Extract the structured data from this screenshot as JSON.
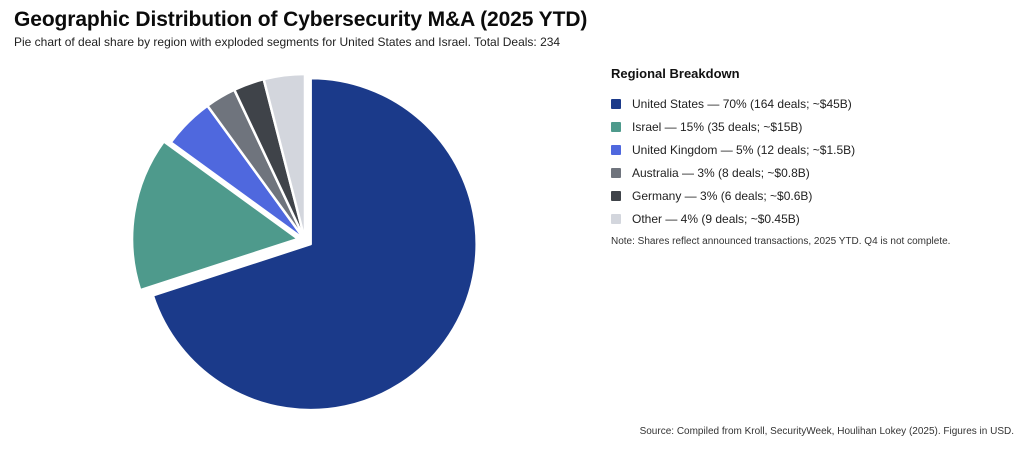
{
  "chart_data": {
    "type": "pie",
    "title": "Geographic Distribution of Cybersecurity M&A (2025 YTD)",
    "subtitle": "Pie chart of deal share by region with exploded segments for United States and Israel. Total Deals: 234",
    "legend_title": "Regional Breakdown",
    "legend_position": "right",
    "exploded": [
      "United States",
      "Israel"
    ],
    "slices": [
      {
        "name": "United States",
        "value": 70,
        "color": "#1b3a8a",
        "label": "United States — 70% (164 deals; ~$45B)"
      },
      {
        "name": "Israel",
        "value": 15,
        "color": "#4e9a8c",
        "label": "Israel — 15% (35 deals; ~$15B)"
      },
      {
        "name": "United Kingdom",
        "value": 5,
        "color": "#4f68de",
        "label": "United Kingdom — 5% (12 deals; ~$1.5B)"
      },
      {
        "name": "Australia",
        "value": 3,
        "color": "#6f747d",
        "label": "Australia — 3% (8 deals; ~$0.8B)"
      },
      {
        "name": "Germany",
        "value": 3,
        "color": "#3f4349",
        "label": "Germany — 3% (6 deals; ~$0.6B)"
      },
      {
        "name": "Other",
        "value": 4,
        "color": "#d3d6dd",
        "label": "Other — 4% (9 deals; ~$0.45B)"
      }
    ],
    "note": "Note: Shares reflect announced transactions, 2025 YTD. Q4 is not complete.",
    "source": "Source: Compiled from Kroll, SecurityWeek, Houlihan Lokey (2025). Figures in USD."
  }
}
